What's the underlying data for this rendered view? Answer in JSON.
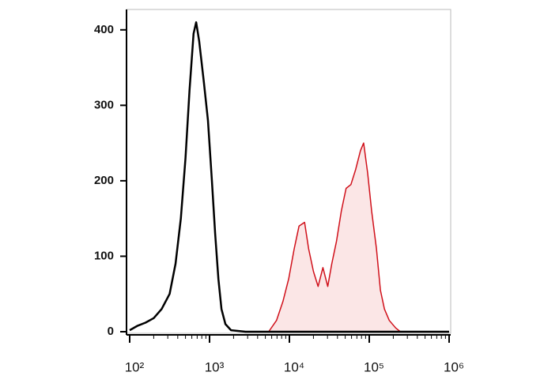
{
  "chart_data": {
    "type": "histogram-overlay",
    "xscale": "log",
    "xlim": [
      100,
      1000000
    ],
    "ylim": [
      0,
      427
    ],
    "xticks": [
      {
        "value": 100,
        "label": "10²"
      },
      {
        "value": 1000,
        "label": "10³"
      },
      {
        "value": 10000,
        "label": "10⁴"
      },
      {
        "value": 100000,
        "label": "10⁵"
      },
      {
        "value": 1000000,
        "label": "10⁶"
      }
    ],
    "xminorticks": [
      200,
      300,
      400,
      500,
      600,
      700,
      800,
      900,
      2000,
      3000,
      4000,
      5000,
      6000,
      7000,
      8000,
      9000,
      20000,
      30000,
      40000,
      50000,
      60000,
      70000,
      80000,
      90000,
      200000,
      300000,
      400000,
      500000,
      600000,
      700000,
      800000,
      900000
    ],
    "yticks": [
      0,
      100,
      200,
      300,
      400
    ],
    "series": [
      {
        "color": "#d0101a",
        "fill": "#fbe6e6",
        "x": [
          5500,
          6900,
          8300,
          9800,
          11500,
          13200,
          15500,
          17400,
          20000,
          22900,
          26300,
          30200,
          33900,
          38900,
          44700,
          51300,
          58900,
          67600,
          77600,
          85100,
          95500,
          107000,
          123000,
          138000,
          155000,
          178000,
          214000,
          245000
        ],
        "values": [
          0,
          15,
          40,
          70,
          110,
          140,
          145,
          110,
          80,
          60,
          85,
          60,
          90,
          120,
          160,
          190,
          195,
          215,
          240,
          250,
          210,
          160,
          110,
          55,
          30,
          15,
          5,
          0
        ]
      },
      {
        "color": "#000000",
        "x": [
          100,
          126,
          158,
          200,
          251,
          316,
          375,
          437,
          500,
          562,
          631,
          680,
          741,
          851,
          955,
          1070,
          1175,
          1290,
          1410,
          1580,
          1860,
          2820,
          5500,
          245000,
          1000000
        ],
        "values": [
          2,
          8,
          12,
          18,
          30,
          50,
          90,
          150,
          230,
          320,
          395,
          410,
          385,
          330,
          280,
          200,
          130,
          70,
          30,
          10,
          2,
          0,
          0,
          0,
          0
        ]
      }
    ]
  }
}
